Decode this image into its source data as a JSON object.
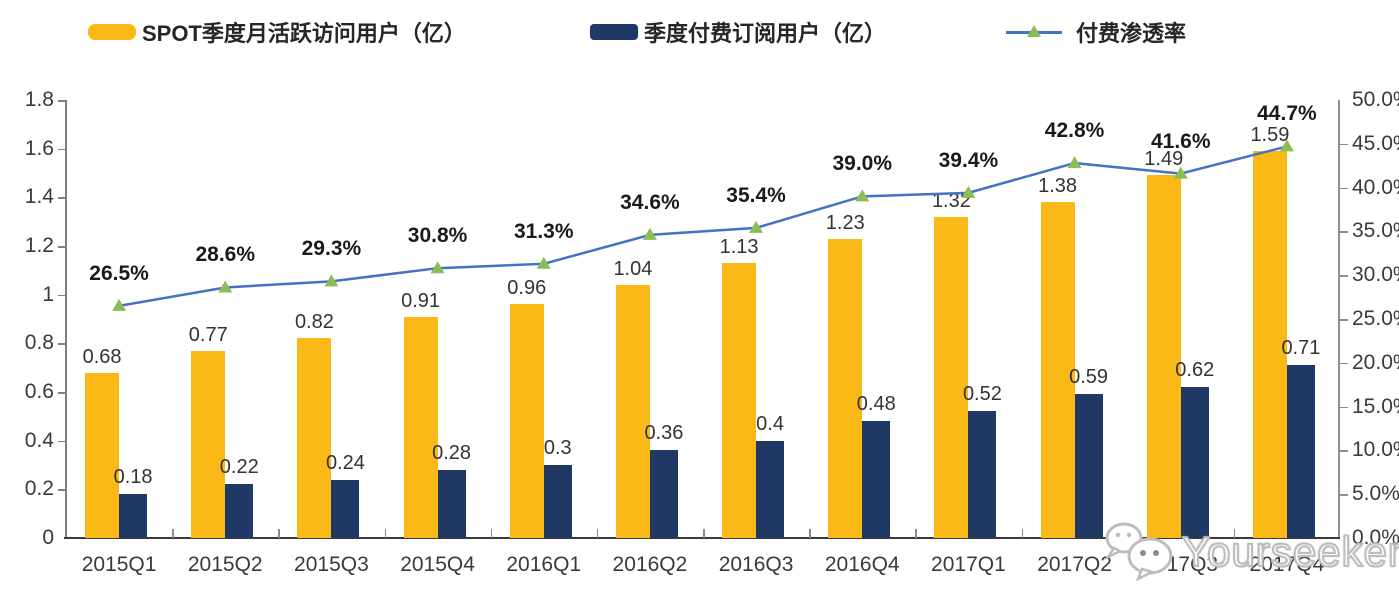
{
  "chart_data": {
    "type": "bar",
    "subtype": "combo-bar-line-dual-axis",
    "categories": [
      "2015Q1",
      "2015Q2",
      "2015Q3",
      "2015Q4",
      "2016Q1",
      "2016Q2",
      "2016Q3",
      "2016Q4",
      "2017Q1",
      "2017Q2",
      "2017Q3",
      "2017Q4"
    ],
    "series": [
      {
        "name": "SPOT季度月活跃访问用户（亿）",
        "kind": "bar",
        "axis": "left",
        "color": "#FBB917",
        "values": [
          0.68,
          0.77,
          0.82,
          0.91,
          0.96,
          1.04,
          1.13,
          1.23,
          1.32,
          1.38,
          1.49,
          1.59
        ],
        "labels": [
          "0.68",
          "0.77",
          "0.82",
          "0.91",
          "0.96",
          "1.04",
          "1.13",
          "1.23",
          "1.32",
          "1.38",
          "1.49",
          "1.59"
        ]
      },
      {
        "name": "季度付费订阅用户（亿）",
        "kind": "bar",
        "axis": "left",
        "color": "#1F3864",
        "values": [
          0.18,
          0.22,
          0.24,
          0.28,
          0.3,
          0.36,
          0.4,
          0.48,
          0.52,
          0.59,
          0.62,
          0.71
        ],
        "labels": [
          "0.18",
          "0.22",
          "0.24",
          "0.28",
          "0.3",
          "0.36",
          "0.4",
          "0.48",
          "0.52",
          "0.59",
          "0.62",
          "0.71"
        ]
      },
      {
        "name": "付费渗透率",
        "kind": "line",
        "axis": "right",
        "color": "#4472C4",
        "marker": "triangle",
        "marker_color": "#8ABD54",
        "values": [
          26.5,
          28.6,
          29.3,
          30.8,
          31.3,
          34.6,
          35.4,
          39.0,
          39.4,
          42.8,
          41.6,
          44.7
        ],
        "labels": [
          "26.5%",
          "28.6%",
          "29.3%",
          "30.8%",
          "31.3%",
          "34.6%",
          "35.4%",
          "39.0%",
          "39.4%",
          "42.8%",
          "41.6%",
          "44.7%"
        ]
      }
    ],
    "left_axis": {
      "min": 0,
      "max": 1.8,
      "ticks": [
        "0",
        "0.2",
        "0.4",
        "0.6",
        "0.8",
        "1",
        "1.2",
        "1.4",
        "1.6",
        "1.8"
      ]
    },
    "right_axis": {
      "min": 0,
      "max": 50,
      "ticks": [
        "0.0%",
        "5.0%",
        "10.0%",
        "15.0%",
        "20.0%",
        "25.0%",
        "30.0%",
        "35.0%",
        "40.0%",
        "45.0%",
        "50.0%"
      ]
    },
    "grid": false,
    "legend_position": "top"
  },
  "watermark": {
    "text": "Yourseeker",
    "icon": "wechat-icon"
  },
  "colors": {
    "bar_primary": "#FBB917",
    "bar_secondary": "#1F3864",
    "line": "#4472C4",
    "marker": "#8ABD54",
    "axis": "#808080",
    "text": "#3a3a3a"
  }
}
